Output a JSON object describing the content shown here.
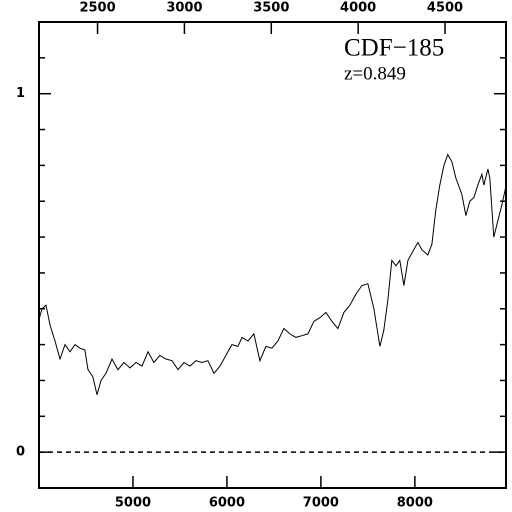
{
  "chart_data": {
    "type": "line",
    "title": "CDF−185",
    "subtitle": "z=0.849",
    "x": [
      4000,
      4032,
      4074,
      4117,
      4170,
      4223,
      4277,
      4330,
      4383,
      4436,
      4489,
      4521,
      4574,
      4617,
      4660,
      4713,
      4777,
      4840,
      4904,
      4968,
      5032,
      5096,
      5160,
      5223,
      5287,
      5351,
      5415,
      5479,
      5543,
      5606,
      5670,
      5734,
      5798,
      5862,
      5926,
      5989,
      6053,
      6117,
      6160,
      6223,
      6287,
      6351,
      6415,
      6479,
      6543,
      6606,
      6670,
      6734,
      6798,
      6862,
      6926,
      6989,
      7053,
      7117,
      7181,
      7245,
      7309,
      7372,
      7436,
      7500,
      7564,
      7628,
      7670,
      7713,
      7755,
      7798,
      7840,
      7883,
      7926,
      7989,
      8032,
      8074,
      8138,
      8181,
      8223,
      8266,
      8309,
      8351,
      8394,
      8436,
      8500,
      8543,
      8585,
      8628,
      8670,
      8713,
      8734,
      8777,
      8798,
      8840,
      8883,
      8926,
      8968
    ],
    "series": [
      {
        "color": "#000000",
        "values": [
          0.37,
          0.4,
          0.41,
          0.355,
          0.31,
          0.26,
          0.3,
          0.28,
          0.3,
          0.29,
          0.285,
          0.23,
          0.21,
          0.16,
          0.2,
          0.22,
          0.26,
          0.23,
          0.25,
          0.235,
          0.25,
          0.24,
          0.28,
          0.25,
          0.27,
          0.26,
          0.255,
          0.23,
          0.25,
          0.24,
          0.255,
          0.25,
          0.255,
          0.22,
          0.24,
          0.27,
          0.3,
          0.295,
          0.32,
          0.31,
          0.33,
          0.255,
          0.295,
          0.29,
          0.31,
          0.345,
          0.33,
          0.32,
          0.325,
          0.33,
          0.365,
          0.375,
          0.39,
          0.365,
          0.345,
          0.39,
          0.41,
          0.44,
          0.465,
          0.47,
          0.4,
          0.295,
          0.34,
          0.425,
          0.535,
          0.52,
          0.535,
          0.465,
          0.535,
          0.565,
          0.585,
          0.565,
          0.55,
          0.58,
          0.675,
          0.745,
          0.8,
          0.83,
          0.81,
          0.765,
          0.72,
          0.66,
          0.7,
          0.71,
          0.745,
          0.775,
          0.745,
          0.79,
          0.765,
          0.6,
          0.645,
          0.69,
          0.74
        ]
      }
    ],
    "xlim": [
      4000,
      8970
    ],
    "xticks": [
      5000,
      6000,
      7000,
      8000
    ],
    "x2lim": [
      2163,
      4851
    ],
    "x2ticks": [
      2500,
      3000,
      3500,
      4000,
      4500
    ],
    "ylim": [
      -0.1,
      1.2
    ],
    "yticks": [
      0,
      1
    ],
    "y_minor_ticks": [
      0.1,
      0.2,
      0.3,
      0.4,
      0.5,
      0.6,
      0.7,
      0.8,
      0.9,
      1.1
    ],
    "hline": 0
  }
}
